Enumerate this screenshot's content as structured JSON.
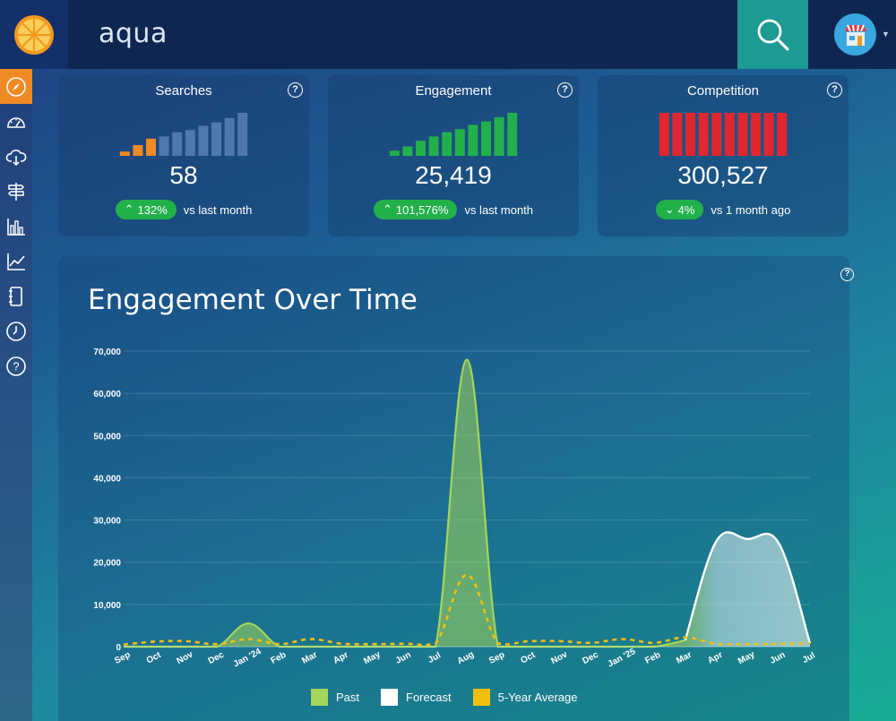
{
  "header": {
    "search_value": "aqua"
  },
  "sidebar": {
    "items": [
      {
        "name": "compass-icon",
        "active": true
      },
      {
        "name": "speedometer-icon",
        "active": false
      },
      {
        "name": "cloud-download-icon",
        "active": false
      },
      {
        "name": "signpost-icon",
        "active": false
      },
      {
        "name": "bar-chart-icon",
        "active": false
      },
      {
        "name": "line-chart-icon",
        "active": false
      },
      {
        "name": "notebook-icon",
        "active": false
      },
      {
        "name": "clock-icon",
        "active": false
      },
      {
        "name": "help-icon",
        "active": false
      }
    ]
  },
  "cards": [
    {
      "title": "Searches",
      "value": "58",
      "delta": "132%",
      "delta_direction": "up",
      "delta_label": "vs last month",
      "bar_levels": [
        0.1,
        0.25,
        0.4,
        0.45,
        0.55,
        0.6,
        0.7,
        0.78,
        0.88,
        1.0
      ],
      "bar_colors": [
        "#f08a24",
        "#f08a24",
        "#f08a24",
        "#4f78ad",
        "#4f78ad",
        "#4f78ad",
        "#4f78ad",
        "#4f78ad",
        "#4f78ad",
        "#4f78ad"
      ]
    },
    {
      "title": "Engagement",
      "value": "25,419",
      "delta": "101,576%",
      "delta_direction": "up",
      "delta_label": "vs last month",
      "bar_levels": [
        0.12,
        0.22,
        0.35,
        0.45,
        0.55,
        0.62,
        0.72,
        0.8,
        0.9,
        1.0
      ],
      "bar_colors": [
        "#22b04b",
        "#22b04b",
        "#22b04b",
        "#22b04b",
        "#22b04b",
        "#22b04b",
        "#22b04b",
        "#22b04b",
        "#22b04b",
        "#22b04b"
      ]
    },
    {
      "title": "Competition",
      "value": "300,527",
      "delta": "4%",
      "delta_direction": "down",
      "delta_label": "vs 1 month ago",
      "bar_levels": [
        1,
        1,
        1,
        1,
        1,
        1,
        1,
        1,
        1,
        1
      ],
      "bar_colors": [
        "#e0262e",
        "#e0262e",
        "#e0262e",
        "#e0262e",
        "#e0262e",
        "#e0262e",
        "#e0262e",
        "#e0262e",
        "#e0262e",
        "#e0262e"
      ]
    }
  ],
  "chart_panel": {
    "title": "Engagement Over Time"
  },
  "chart_data": {
    "type": "area",
    "categories": [
      "Sep",
      "Oct",
      "Nov",
      "Dec",
      "Jan '24",
      "Feb",
      "Mar",
      "Apr",
      "May",
      "Jun",
      "Jul",
      "Aug",
      "Sep",
      "Oct",
      "Nov",
      "Dec",
      "Jan '25",
      "Feb",
      "Mar",
      "Apr",
      "May",
      "Jun",
      "Jul"
    ],
    "yticks": [
      "0",
      "10,000",
      "20,000",
      "30,000",
      "40,000",
      "50,000",
      "60,000",
      "70,000"
    ],
    "ylim": [
      0,
      70000
    ],
    "grid": true,
    "legend_position": "bottom-center",
    "series": [
      {
        "name": "Past",
        "color": "#a3d65a",
        "values": [
          0,
          0,
          0,
          0,
          5500,
          0,
          0,
          0,
          0,
          0,
          0,
          68000,
          0,
          0,
          0,
          0,
          0,
          0,
          1500,
          null,
          null,
          null,
          null
        ]
      },
      {
        "name": "Forecast",
        "color": "#ffffff",
        "values": [
          null,
          null,
          null,
          null,
          null,
          null,
          null,
          null,
          null,
          null,
          null,
          null,
          null,
          null,
          null,
          null,
          null,
          null,
          1500,
          25000,
          25500,
          24500,
          800
        ]
      },
      {
        "name": "5-Year Average",
        "color": "#f2bf0f",
        "values": [
          500,
          1200,
          1300,
          600,
          1800,
          600,
          1800,
          700,
          600,
          700,
          800,
          17000,
          800,
          1300,
          1300,
          900,
          1800,
          900,
          2200,
          700,
          600,
          700,
          800
        ]
      }
    ]
  }
}
